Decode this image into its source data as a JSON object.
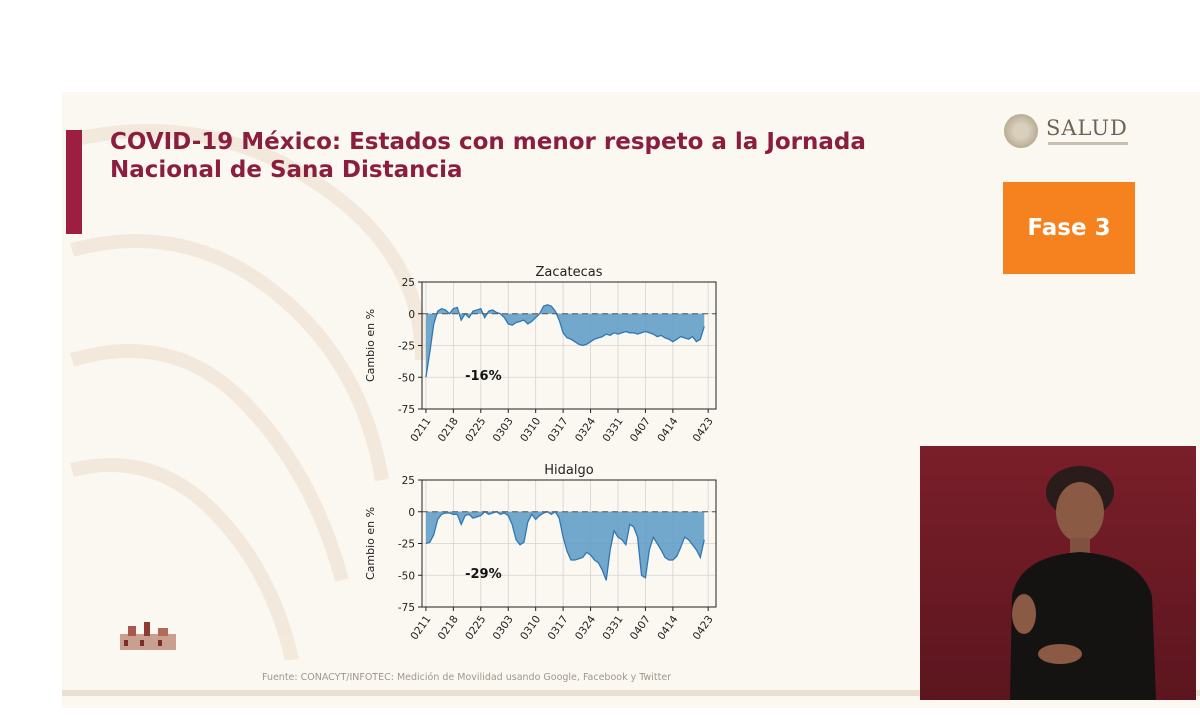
{
  "slide": {
    "title_line1": "COVID-19 México: Estados con menor respeto a la Jornada",
    "title_line2": "Nacional de Sana Distancia",
    "logo_text": "SALUD",
    "phase_label": "Fase 3",
    "source": "Fuente: CONACYT/INFOTEC: Medición de Movilidad usando Google, Facebook y Twitter"
  },
  "colors": {
    "title": "#8b1e3f",
    "accent_bar": "#9c1f41",
    "phase_box": "#f5821f",
    "area_fill": "#5b9ac7",
    "area_line": "#2f77b4",
    "interpreter_bg": "#6e1a25"
  },
  "chart_data": [
    {
      "type": "area",
      "title": "Zacatecas",
      "ylabel": "Cambio en %",
      "xlabel": "",
      "ylim": [
        -75,
        25
      ],
      "yticks": [
        25,
        0,
        -25,
        -50,
        -75
      ],
      "xtick_labels": [
        "0211",
        "0218",
        "0225",
        "0303",
        "0310",
        "0317",
        "0324",
        "0331",
        "0407",
        "0414",
        "0423"
      ],
      "xtick_days": [
        0,
        7,
        14,
        21,
        28,
        35,
        42,
        49,
        56,
        63,
        72
      ],
      "annotation": "-16%",
      "grid": true,
      "baseline": 0,
      "x_days": [
        0,
        1,
        2,
        3,
        4,
        5,
        6,
        7,
        8,
        9,
        10,
        11,
        12,
        13,
        14,
        15,
        16,
        17,
        18,
        19,
        20,
        21,
        22,
        23,
        24,
        25,
        26,
        27,
        28,
        29,
        30,
        31,
        32,
        33,
        34,
        35,
        36,
        37,
        38,
        39,
        40,
        41,
        42,
        43,
        44,
        45,
        46,
        47,
        48,
        49,
        50,
        51,
        52,
        53,
        54,
        55,
        56,
        57,
        58,
        59,
        60,
        61,
        62,
        63,
        64,
        65,
        66,
        67,
        68,
        69,
        70,
        71
      ],
      "values": [
        -50,
        -30,
        -8,
        2,
        4,
        3,
        0,
        4,
        5,
        -5,
        0,
        -3,
        2,
        3,
        4,
        -3,
        2,
        3,
        1,
        0,
        -3,
        -8,
        -9,
        -7,
        -6,
        -5,
        -8,
        -6,
        -3,
        0,
        6,
        7,
        6,
        2,
        -5,
        -15,
        -19,
        -20,
        -22,
        -24,
        -25,
        -24,
        -22,
        -20,
        -19,
        -18,
        -16,
        -17,
        -15,
        -16,
        -15,
        -14,
        -15,
        -15,
        -16,
        -15,
        -14,
        -15,
        -16,
        -18,
        -17,
        -19,
        -20,
        -22,
        -20,
        -18,
        -19,
        -20,
        -18,
        -22,
        -20,
        -10
      ]
    },
    {
      "type": "area",
      "title": "Hidalgo",
      "ylabel": "Cambio en %",
      "xlabel": "",
      "ylim": [
        -75,
        25
      ],
      "yticks": [
        25,
        0,
        -25,
        -50,
        -75
      ],
      "xtick_labels": [
        "0211",
        "0218",
        "0225",
        "0303",
        "0310",
        "0317",
        "0324",
        "0331",
        "0407",
        "0414",
        "0423"
      ],
      "xtick_days": [
        0,
        7,
        14,
        21,
        28,
        35,
        42,
        49,
        56,
        63,
        72
      ],
      "annotation": "-29%",
      "grid": true,
      "baseline": 0,
      "x_days": [
        0,
        1,
        2,
        3,
        4,
        5,
        6,
        7,
        8,
        9,
        10,
        11,
        12,
        13,
        14,
        15,
        16,
        17,
        18,
        19,
        20,
        21,
        22,
        23,
        24,
        25,
        26,
        27,
        28,
        29,
        30,
        31,
        32,
        33,
        34,
        35,
        36,
        37,
        38,
        39,
        40,
        41,
        42,
        43,
        44,
        45,
        46,
        47,
        48,
        49,
        50,
        51,
        52,
        53,
        54,
        55,
        56,
        57,
        58,
        59,
        60,
        61,
        62,
        63,
        64,
        65,
        66,
        67,
        68,
        69,
        70,
        71
      ],
      "values": [
        -25,
        -24,
        -18,
        -6,
        -2,
        -1,
        -1,
        -2,
        -2,
        -10,
        -3,
        -2,
        -5,
        -4,
        -3,
        0,
        -2,
        -1,
        0,
        -2,
        -1,
        -3,
        -10,
        -22,
        -26,
        -24,
        -8,
        -2,
        -6,
        -3,
        -1,
        0,
        -2,
        0,
        -5,
        -20,
        -31,
        -38,
        -38,
        -37,
        -36,
        -32,
        -34,
        -38,
        -40,
        -46,
        -54,
        -30,
        -15,
        -20,
        -22,
        -26,
        -10,
        -12,
        -20,
        -50,
        -52,
        -30,
        -20,
        -25,
        -30,
        -36,
        -38,
        -38,
        -35,
        -28,
        -20,
        -22,
        -26,
        -30,
        -36,
        -22
      ]
    }
  ]
}
